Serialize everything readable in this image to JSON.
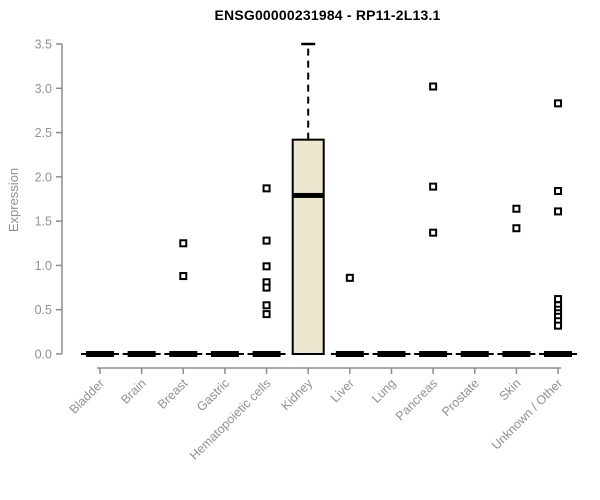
{
  "chart_data": {
    "type": "boxplot",
    "title": "ENSG00000231984 - RP11-2L13.1",
    "ylabel": "Expression",
    "xlabel": "",
    "ylim": [
      0,
      3.5
    ],
    "yticks": [
      "0.0",
      "0.5",
      "1.0",
      "1.5",
      "2.0",
      "2.5",
      "3.0",
      "3.5"
    ],
    "grid": "off",
    "legend": "none",
    "categories": [
      "Bladder",
      "Brain",
      "Breast",
      "Gastric",
      "Hematopoietic cells",
      "Kidney",
      "Liver",
      "Lung",
      "Pancreas",
      "Prostate",
      "Skin",
      "Unknown / Other"
    ],
    "boxes": [
      {
        "category": "Bladder",
        "min": 0,
        "q1": 0,
        "median": 0,
        "q3": 0,
        "max": 0,
        "points": []
      },
      {
        "category": "Brain",
        "min": 0,
        "q1": 0,
        "median": 0,
        "q3": 0,
        "max": 0,
        "points": []
      },
      {
        "category": "Breast",
        "min": 0,
        "q1": 0,
        "median": 0,
        "q3": 0,
        "max": 0,
        "points": [
          1.25,
          0.88
        ]
      },
      {
        "category": "Gastric",
        "min": 0,
        "q1": 0,
        "median": 0,
        "q3": 0,
        "max": 0,
        "points": []
      },
      {
        "category": "Hematopoietic cells",
        "min": 0,
        "q1": 0,
        "median": 0,
        "q3": 0,
        "max": 0,
        "points": [
          1.87,
          1.28,
          0.99,
          0.81,
          0.75,
          0.55,
          0.45
        ]
      },
      {
        "category": "Kidney",
        "min": 0,
        "q1": 0,
        "median": 1.79,
        "q3": 2.42,
        "max": 3.5,
        "points": []
      },
      {
        "category": "Liver",
        "min": 0,
        "q1": 0,
        "median": 0,
        "q3": 0,
        "max": 0,
        "points": [
          0.86
        ]
      },
      {
        "category": "Lung",
        "min": 0,
        "q1": 0,
        "median": 0,
        "q3": 0,
        "max": 0,
        "points": []
      },
      {
        "category": "Pancreas",
        "min": 0,
        "q1": 0,
        "median": 0,
        "q3": 0,
        "max": 0,
        "points": [
          3.02,
          1.89,
          1.37
        ]
      },
      {
        "category": "Prostate",
        "min": 0,
        "q1": 0,
        "median": 0,
        "q3": 0,
        "max": 0,
        "points": []
      },
      {
        "category": "Skin",
        "min": 0,
        "q1": 0,
        "median": 0,
        "q3": 0,
        "max": 0,
        "points": [
          1.64,
          1.42
        ]
      },
      {
        "category": "Unknown / Other",
        "min": 0,
        "q1": 0,
        "median": 0,
        "q3": 0,
        "max": 0,
        "points": [
          2.83,
          1.84,
          1.61,
          0.62,
          0.55,
          0.5,
          0.46,
          0.42,
          0.37,
          0.32
        ]
      }
    ],
    "colors": {
      "box_fill": "#ECE7CD",
      "box_stroke": "#000000",
      "median": "#000000",
      "whisker": "#000000",
      "point_fill": "#FFFFFF",
      "point_stroke": "#000000",
      "axis": "#8D8D8D",
      "tick_label": "#919191",
      "title": "#000000"
    }
  }
}
